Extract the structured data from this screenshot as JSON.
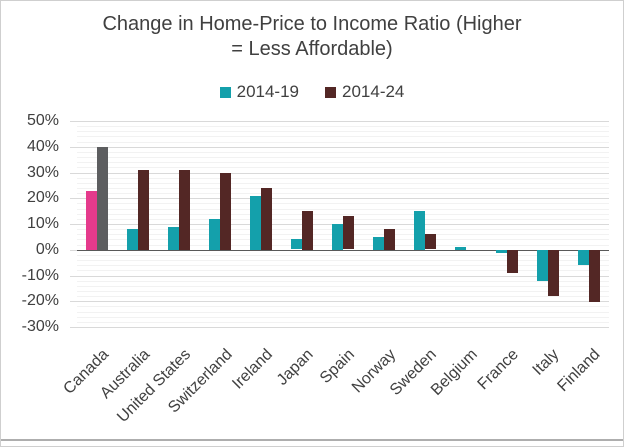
{
  "frame": {
    "border_color": "#cfcfcf",
    "bottom_rule_color": "#aeaeae"
  },
  "chart_data": {
    "type": "bar",
    "title": "Change in Home-Price to Income Ratio (Higher = Less Affordable)",
    "title_lines": [
      "Change in Home-Price to Income Ratio (Higher",
      "= Less Affordable)"
    ],
    "categories": [
      "Canada",
      "Australia",
      "United States",
      "Switzerland",
      "Ireland",
      "Japan",
      "Spain",
      "Norway",
      "Sweden",
      "Belgium",
      "France",
      "Italy",
      "Finland"
    ],
    "series": [
      {
        "name": "2014-19",
        "color": "#14a0ab",
        "values": [
          23,
          8,
          9,
          12,
          21,
          4,
          10,
          5,
          15,
          1,
          -1,
          -12,
          -6
        ]
      },
      {
        "name": "2014-24",
        "color": "#532725",
        "values": [
          40,
          31,
          31,
          30,
          24,
          15,
          13,
          8,
          6,
          0,
          -9,
          -18,
          -20
        ]
      }
    ],
    "highlight": {
      "category": "Canada",
      "colors": [
        "#e53a8c",
        "#5d5e60"
      ]
    },
    "y_axis": {
      "tick_labels": [
        "50%",
        "40%",
        "30%",
        "20%",
        "10%",
        "0%",
        "-10%",
        "-20%",
        "-30%"
      ],
      "max": 50,
      "min": -30,
      "major_unit": 10,
      "minor_unit": 2
    },
    "ylabel": "",
    "xlabel": "",
    "legend_position": "top",
    "grid": {
      "major_color": "#d9d9d9",
      "minor_color": "#f2f2f2",
      "zero_color": "#595959"
    },
    "text_color": "#404040"
  }
}
